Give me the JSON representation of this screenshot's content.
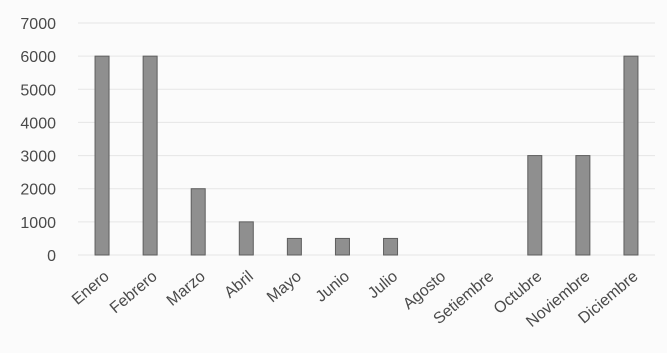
{
  "chart_data": {
    "type": "bar",
    "categories": [
      "Enero",
      "Febrero",
      "Marzo",
      "Abril",
      "Mayo",
      "Junio",
      "Julio",
      "Agosto",
      "Setiembre",
      "Octubre",
      "Noviembre",
      "Diciembre"
    ],
    "values": [
      6000,
      6000,
      2000,
      1000,
      500,
      500,
      500,
      0,
      0,
      3000,
      3000,
      6000
    ],
    "ylim": [
      0,
      7000
    ],
    "yticks": [
      "0",
      "1000",
      "2000",
      "3000",
      "4000",
      "5000",
      "6000",
      "7000"
    ],
    "grid": true,
    "colors": {
      "bar_fill": "#8f8f8f",
      "bar_stroke": "#5e5e5e",
      "grid": "#e6e6e6",
      "text": "#4a4a4a"
    }
  }
}
